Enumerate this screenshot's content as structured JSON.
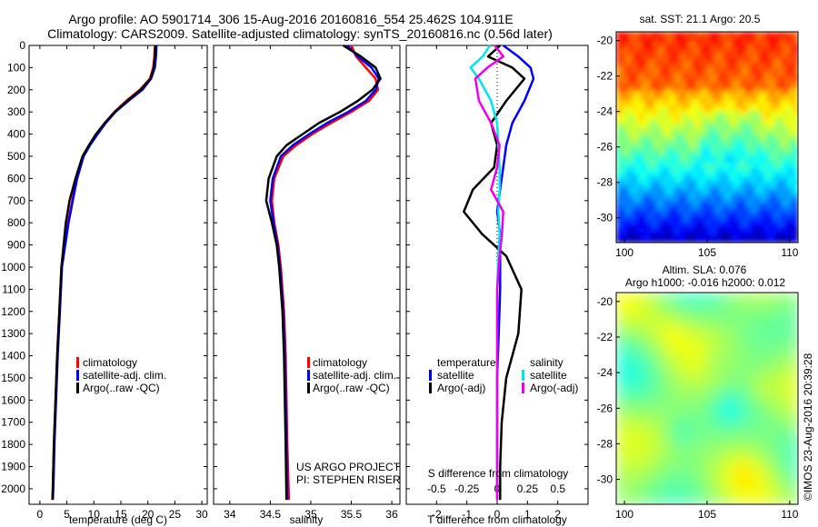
{
  "header": {
    "title_line1": "Argo profile: AO 5901714_306 15-Aug-2016 20160816_554 25.462S 104.911E",
    "title_line2": "Climatology: CARS2009. Satellite-adjusted climatology: synTS_20160816.nc (0.56d later)"
  },
  "colors": {
    "climatology": "#ff0000",
    "satellite": "#0000ff",
    "argo": "#000000",
    "s_satellite": "#00e5ee",
    "s_argo": "#ee00ee"
  },
  "depth_ticks": [
    0,
    100,
    200,
    300,
    400,
    500,
    600,
    700,
    800,
    900,
    1000,
    1100,
    1200,
    1300,
    1400,
    1500,
    1600,
    1700,
    1800,
    1900,
    2000
  ],
  "chart_data": [
    {
      "type": "line",
      "panel": "temperature",
      "xlabel": "temperature (deg C)",
      "ylabel": "",
      "xlim": [
        -2,
        31
      ],
      "ylim": [
        2070,
        0
      ],
      "xticks": [
        0,
        5,
        10,
        15,
        20,
        25,
        30
      ],
      "legend": [
        "climatology",
        "satellite-adj. clim.",
        "Argo(..raw -QC)"
      ],
      "legend_position": "bottom-left",
      "series": [
        {
          "name": "climatology",
          "color_key": "climatology",
          "x": [
            21.3,
            21.2,
            21.0,
            20.4,
            18.5,
            16.0,
            13.8,
            12.0,
            10.5,
            9.2,
            8.0,
            6.8,
            6.0,
            5.2,
            4.6,
            4.0,
            3.6,
            3.2,
            2.9,
            2.6,
            2.4,
            2.3
          ],
          "y": [
            0,
            50,
            100,
            150,
            200,
            250,
            300,
            350,
            400,
            450,
            500,
            600,
            700,
            800,
            900,
            1000,
            1200,
            1400,
            1600,
            1800,
            2000,
            2050
          ]
        },
        {
          "name": "satellite-adj. clim.",
          "color_key": "satellite",
          "x": [
            21.6,
            21.5,
            21.3,
            20.6,
            19.0,
            16.4,
            14.0,
            12.2,
            10.7,
            9.3,
            8.1,
            6.9,
            6.1,
            5.3,
            4.7,
            4.1,
            3.7,
            3.3,
            3.0,
            2.7,
            2.5,
            2.4
          ],
          "y": [
            0,
            50,
            100,
            150,
            200,
            250,
            300,
            350,
            400,
            450,
            500,
            600,
            700,
            800,
            900,
            1000,
            1200,
            1400,
            1600,
            1800,
            2000,
            2050
          ]
        },
        {
          "name": "Argo(..raw -QC)",
          "color_key": "argo",
          "x": [
            21.4,
            21.3,
            21.1,
            20.5,
            18.7,
            16.2,
            13.9,
            12.0,
            10.4,
            9.1,
            7.9,
            6.6,
            5.5,
            4.8,
            4.4,
            4.0,
            3.6,
            3.2,
            2.9,
            2.6,
            2.4,
            2.35
          ],
          "y": [
            0,
            50,
            100,
            150,
            200,
            250,
            300,
            350,
            400,
            450,
            500,
            600,
            700,
            800,
            900,
            1000,
            1200,
            1400,
            1600,
            1800,
            2000,
            2050
          ]
        }
      ]
    },
    {
      "type": "line",
      "panel": "salinity",
      "xlabel": "salinity",
      "ylabel": "",
      "xlim": [
        33.8,
        36.1
      ],
      "ylim": [
        2070,
        0
      ],
      "xticks": [
        34,
        34.5,
        35,
        35.5,
        36
      ],
      "legend": [
        "climatology",
        "satellite-adj. clim.",
        "Argo(..raw -QC)"
      ],
      "legend_position": "bottom-right",
      "annotation": [
        "US ARGO PROJECT",
        "PI: STEPHEN RISER"
      ],
      "series": [
        {
          "name": "climatology",
          "color_key": "climatology",
          "x": [
            35.5,
            35.56,
            35.68,
            35.8,
            35.83,
            35.72,
            35.5,
            35.25,
            35.02,
            34.82,
            34.66,
            34.55,
            34.52,
            34.55,
            34.6,
            34.63,
            34.67,
            34.69,
            34.7,
            34.71,
            34.73
          ],
          "y": [
            0,
            50,
            100,
            150,
            200,
            250,
            300,
            350,
            400,
            450,
            500,
            600,
            700,
            800,
            900,
            1000,
            1200,
            1400,
            1600,
            1800,
            2050
          ]
        },
        {
          "name": "satellite-adj. clim.",
          "color_key": "satellite",
          "x": [
            35.45,
            35.58,
            35.75,
            35.84,
            35.8,
            35.68,
            35.46,
            35.2,
            34.98,
            34.78,
            34.63,
            34.53,
            34.5,
            34.54,
            34.59,
            34.62,
            34.66,
            34.68,
            34.69,
            34.7,
            34.71
          ],
          "y": [
            0,
            50,
            100,
            150,
            200,
            250,
            300,
            350,
            400,
            450,
            500,
            600,
            700,
            800,
            900,
            1000,
            1200,
            1400,
            1600,
            1800,
            2050
          ]
        },
        {
          "name": "Argo(..raw -QC)",
          "color_key": "argo",
          "x": [
            35.4,
            35.62,
            35.8,
            35.86,
            35.76,
            35.58,
            35.36,
            35.1,
            34.9,
            34.7,
            34.58,
            34.48,
            34.45,
            34.52,
            34.58,
            34.61,
            34.65,
            34.67,
            34.68,
            34.69,
            34.7
          ],
          "y": [
            0,
            50,
            100,
            150,
            200,
            250,
            300,
            350,
            400,
            450,
            500,
            600,
            700,
            800,
            900,
            1000,
            1200,
            1400,
            1600,
            1800,
            2050
          ]
        }
      ]
    },
    {
      "type": "line",
      "panel": "difference",
      "xlabel": "T difference from climatology",
      "xlabel2": "S difference from climatology",
      "xlim": [
        -3,
        3
      ],
      "x2lim": [
        -0.75,
        0.75
      ],
      "ylim": [
        2070,
        0
      ],
      "xticks": [
        -2,
        -1,
        0,
        1,
        2
      ],
      "x2ticks": [
        -0.5,
        -0.25,
        0,
        0.25,
        0.5
      ],
      "x2ticklabels": [
        "-0.5",
        "-0.25",
        "0",
        "0.25",
        "0.5"
      ],
      "legend_titles": [
        "temperature",
        "salinity"
      ],
      "legend": [
        "satellite",
        "Argo(-adj)",
        "satellite",
        "Argo(-adj)"
      ],
      "legend_position": "bottom",
      "series": [
        {
          "name": "satellite",
          "quantity": "temperature",
          "color_key": "satellite",
          "x": [
            0.2,
            0.7,
            1.1,
            1.2,
            0.9,
            0.5,
            0.3,
            0.2,
            0.1,
            0.0,
            0.1,
            0.1,
            0.1,
            0.05,
            0.0,
            0.0,
            0.0,
            0.0,
            0.0
          ],
          "y": [
            0,
            50,
            100,
            150,
            250,
            350,
            450,
            550,
            650,
            750,
            850,
            950,
            1100,
            1300,
            1500,
            1700,
            1900,
            2000,
            2050
          ]
        },
        {
          "name": "Argo(-adj)",
          "quantity": "temperature",
          "color_key": "argo",
          "x": [
            0.1,
            -0.3,
            0.5,
            0.9,
            0.3,
            -0.2,
            0.0,
            -0.1,
            -0.8,
            -1.1,
            -0.5,
            0.3,
            0.8,
            0.7,
            0.3,
            0.15,
            0.1,
            0.1,
            0.1
          ],
          "y": [
            0,
            50,
            100,
            150,
            250,
            350,
            450,
            550,
            650,
            750,
            850,
            950,
            1100,
            1300,
            1500,
            1700,
            1900,
            2000,
            2050
          ]
        },
        {
          "name": "satellite",
          "quantity": "salinity",
          "color_key": "s_satellite",
          "x": [
            -0.06,
            -0.12,
            -0.22,
            -0.15,
            -0.05,
            0.0,
            0.01,
            0.02,
            0.02,
            0.01,
            0.02,
            0.01,
            0.0,
            0.0,
            0.0,
            0.0,
            0.0,
            0.0,
            0.0
          ],
          "y": [
            0,
            50,
            100,
            150,
            250,
            350,
            450,
            550,
            650,
            750,
            850,
            950,
            1100,
            1300,
            1500,
            1700,
            1900,
            2000,
            2050
          ]
        },
        {
          "name": "Argo(-adj)",
          "quantity": "salinity",
          "color_key": "s_argo",
          "x": [
            -0.02,
            0.05,
            -0.08,
            -0.18,
            -0.15,
            -0.05,
            0.02,
            0.0,
            -0.05,
            0.05,
            0.04,
            0.02,
            0.0,
            0.0,
            0.0,
            0.0,
            0.0,
            0.0,
            0.0
          ],
          "y": [
            0,
            50,
            100,
            150,
            250,
            350,
            450,
            550,
            650,
            750,
            850,
            950,
            1100,
            1300,
            1500,
            1700,
            1900,
            2000,
            2050
          ]
        }
      ]
    },
    {
      "type": "heatmap",
      "panel": "sst_map",
      "title": "sat. SST: 21.1  Argo: 20.5",
      "xlim": [
        99.5,
        110.5
      ],
      "ylim": [
        -31.4,
        -19.5
      ],
      "xticks": [
        100,
        105,
        110
      ],
      "yticks": [
        -20,
        -22,
        -24,
        -26,
        -28,
        -30
      ],
      "colormap": "jet"
    },
    {
      "type": "heatmap",
      "panel": "sla_map",
      "title_line1": "Altim. SLA: 0.076",
      "title_line2": "Argo h1000: -0.016 h2000: 0.012",
      "xlim": [
        99.5,
        110.5
      ],
      "ylim": [
        -31.4,
        -19.5
      ],
      "xticks": [
        100,
        105,
        110
      ],
      "yticks": [
        -20,
        -22,
        -24,
        -26,
        -28,
        -30
      ],
      "colormap": "jet"
    }
  ],
  "footer": {
    "credit": "©IMOS 23-Aug-2016 20:39:28"
  }
}
